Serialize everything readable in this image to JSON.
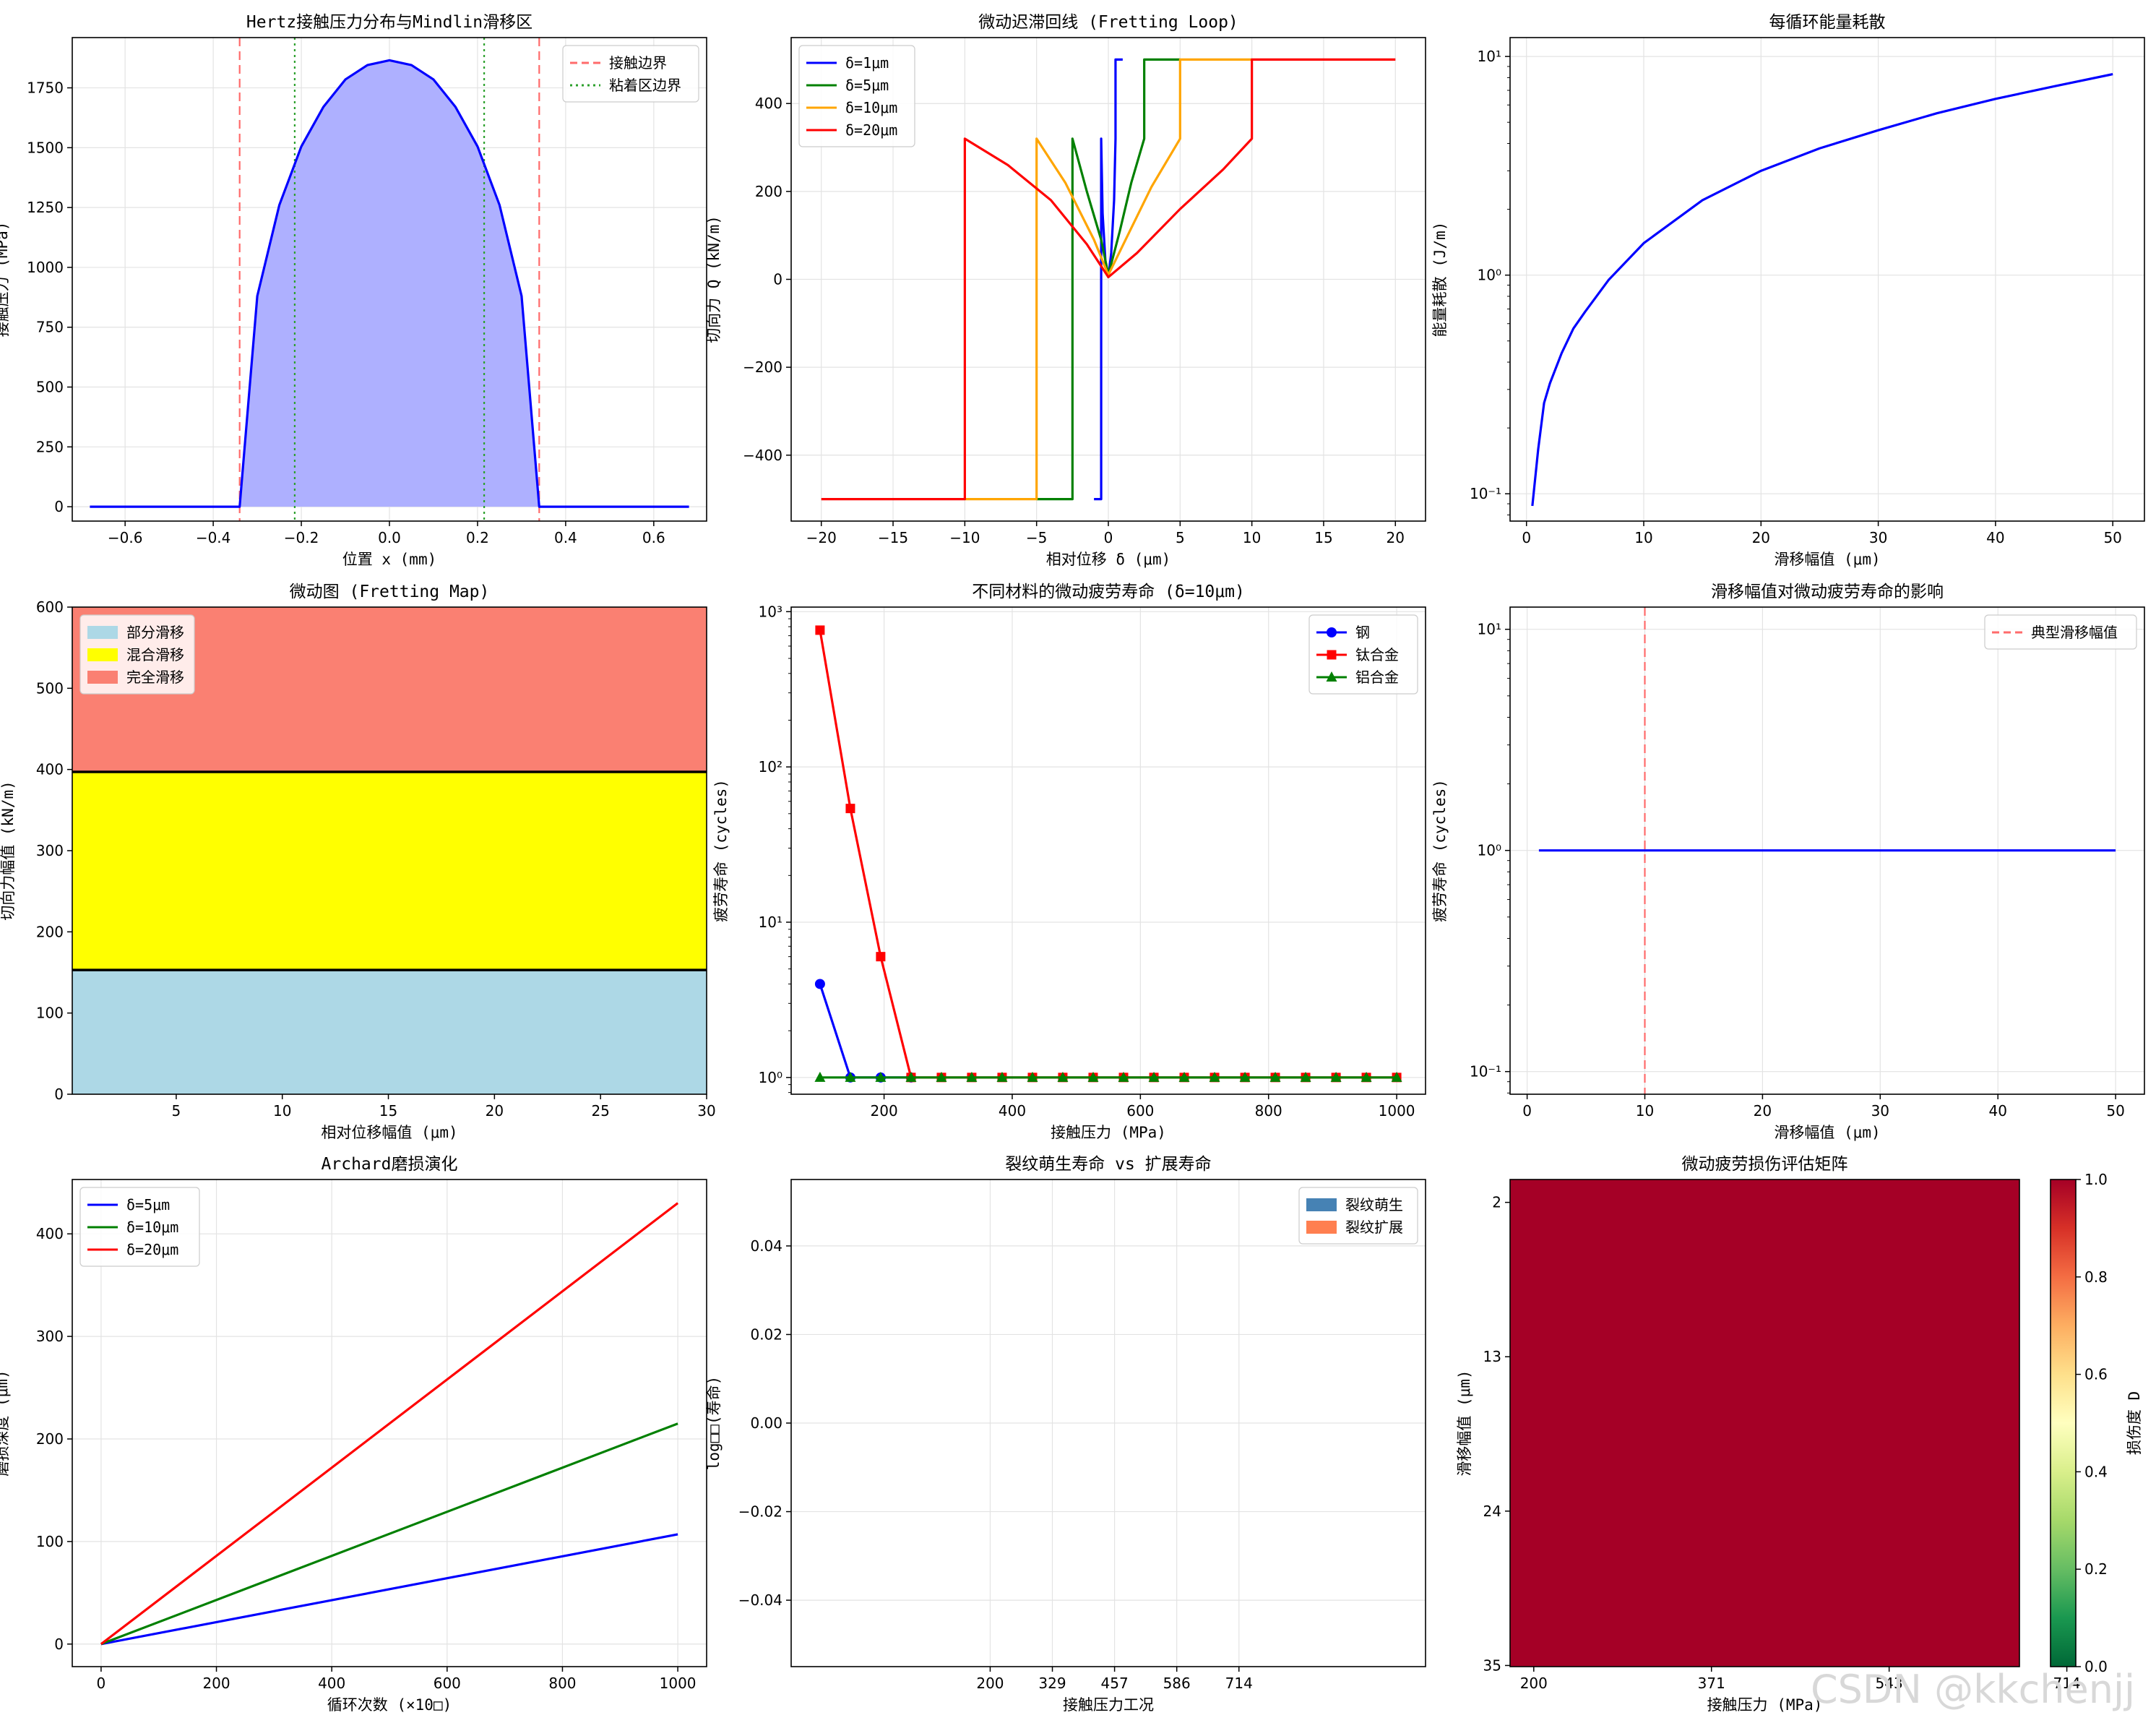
{
  "watermark": "CSDN @kkchenjj",
  "chart_data": [
    {
      "type": "area",
      "title": "Hertz接触压力分布与Mindlin滑移区",
      "xlabel": "位置 x (mm)",
      "ylabel": "接触压力 (MPa)",
      "xlim": [
        -0.72,
        0.72
      ],
      "ylim": [
        -60,
        1960
      ],
      "xticks": [
        -0.6,
        -0.4,
        -0.2,
        0.0,
        0.2,
        0.4,
        0.6
      ],
      "xticklabels": [
        "−0.6",
        "−0.4",
        "−0.2",
        "0.0",
        "0.2",
        "0.4",
        "0.6"
      ],
      "yticks": [
        0,
        250,
        500,
        750,
        1000,
        1250,
        1500,
        1750
      ],
      "yticklabels": [
        "0",
        "250",
        "500",
        "750",
        "1000",
        "1250",
        "1500",
        "1750"
      ],
      "series": [
        {
          "name": "",
          "color": "#0000ff",
          "fill": "#aeb0ff",
          "x": [
            -0.68,
            -0.36,
            -0.34,
            -0.3,
            -0.25,
            -0.2,
            -0.15,
            -0.1,
            -0.05,
            0.0,
            0.05,
            0.1,
            0.15,
            0.2,
            0.25,
            0.3,
            0.34,
            0.36,
            0.68
          ],
          "y": [
            0,
            0,
            0,
            880,
            1260,
            1505,
            1670,
            1785,
            1845,
            1865,
            1845,
            1785,
            1670,
            1505,
            1260,
            880,
            0,
            0,
            0
          ]
        }
      ],
      "vlines": [
        {
          "x": -0.34,
          "color": "#ff6b6b",
          "dash": "12,7",
          "legend": "接触边界"
        },
        {
          "x": 0.34,
          "color": "#ff6b6b",
          "dash": "12,7",
          "legend": ""
        },
        {
          "x": -0.215,
          "color": "#2ca02c",
          "dash": "3,5",
          "legend": "粘着区边界"
        },
        {
          "x": 0.215,
          "color": "#2ca02c",
          "dash": "3,5",
          "legend": ""
        }
      ],
      "legend": {
        "loc": "top-right",
        "entries": [
          {
            "label": "接触边界",
            "color": "#ff6b6b",
            "kind": "dash"
          },
          {
            "label": "粘着区边界",
            "color": "#2ca02c",
            "kind": "dot"
          }
        ]
      }
    },
    {
      "type": "line",
      "title": "微动迟滞回线 (Fretting Loop)",
      "xlabel": "相对位移 δ (μm)",
      "ylabel": "切向力 Q (kN/m)",
      "xlim": [
        -22.1,
        22.1
      ],
      "ylim": [
        -550,
        550
      ],
      "xticks": [
        -20,
        -15,
        -10,
        -5,
        0,
        5,
        10,
        15,
        20
      ],
      "xticklabels": [
        "−20",
        "−15",
        "−10",
        "−5",
        "0",
        "5",
        "10",
        "15",
        "20"
      ],
      "yticks": [
        -400,
        -200,
        0,
        200,
        400
      ],
      "yticklabels": [
        "−400",
        "−200",
        "0",
        "200",
        "400"
      ],
      "series": [
        {
          "name": "δ=1μm",
          "color": "#0000ff",
          "x": [
            -1,
            -0.5,
            -0.5,
            -0.4,
            -0.2,
            0,
            0.2,
            0.4,
            0.5,
            0.5,
            1
          ],
          "y": [
            -500,
            -500,
            320,
            150,
            40,
            5,
            60,
            180,
            320,
            500,
            500
          ]
        },
        {
          "name": "δ=5μm",
          "color": "#008000",
          "x": [
            -5,
            -2.5,
            -2.5,
            -1.5,
            -0.5,
            0,
            0.8,
            1.6,
            2.5,
            2.5,
            5
          ],
          "y": [
            -500,
            -500,
            320,
            200,
            90,
            10,
            110,
            220,
            320,
            500,
            500
          ]
        },
        {
          "name": "δ=10μm",
          "color": "#ffa500",
          "x": [
            -10,
            -5,
            -5,
            -3,
            -1,
            0,
            1.5,
            3,
            5,
            5,
            10
          ],
          "y": [
            -500,
            -500,
            320,
            220,
            90,
            10,
            110,
            210,
            320,
            500,
            500
          ]
        },
        {
          "name": "δ=20μm",
          "color": "#ff0000",
          "x": [
            -20,
            -10,
            -10,
            -7,
            -4,
            -1.5,
            0,
            2,
            5,
            8,
            10,
            10,
            20
          ],
          "y": [
            -500,
            -500,
            320,
            260,
            180,
            80,
            5,
            60,
            160,
            250,
            320,
            500,
            500
          ]
        }
      ],
      "legend": {
        "loc": "top-left"
      }
    },
    {
      "type": "line",
      "title": "每循环能量耗散",
      "xlabel": "滑移幅值 (μm)",
      "ylabel": "能量耗散 (J/m)",
      "xscale": "linear",
      "yscale": "log",
      "xlim": [
        -1.4,
        52.7
      ],
      "ylim": [
        0.075,
        12.2
      ],
      "xticks": [
        0,
        10,
        20,
        30,
        40,
        50
      ],
      "xticklabels": [
        "0",
        "10",
        "20",
        "30",
        "40",
        "50"
      ],
      "yticks": [
        0.1,
        1,
        10
      ],
      "yticklabels": [
        "10⁻¹",
        "10⁰",
        "10¹"
      ],
      "series": [
        {
          "name": "",
          "color": "#0000ff",
          "x": [
            0.5,
            1,
            1.5,
            2,
            3,
            4,
            5,
            7,
            10,
            15,
            20,
            25,
            30,
            35,
            40,
            45,
            50
          ],
          "y": [
            0.088,
            0.16,
            0.26,
            0.32,
            0.44,
            0.57,
            0.68,
            0.95,
            1.4,
            2.2,
            3.0,
            3.8,
            4.6,
            5.5,
            6.4,
            7.3,
            8.3
          ]
        }
      ]
    },
    {
      "type": "area",
      "title": "微动图 (Fretting Map)",
      "xlabel": "相对位移幅值 (μm)",
      "ylabel": "切向力幅值 (kN/m)",
      "xlim": [
        0.1,
        30
      ],
      "ylim": [
        0,
        600
      ],
      "xticks": [
        5,
        10,
        15,
        20,
        25,
        30
      ],
      "xticklabels": [
        "5",
        "10",
        "15",
        "20",
        "25",
        "30"
      ],
      "yticks": [
        0,
        100,
        200,
        300,
        400,
        500,
        600
      ],
      "yticklabels": [
        "0",
        "100",
        "200",
        "300",
        "400",
        "500",
        "600"
      ],
      "regions": [
        {
          "name": "部分滑移",
          "color": "#add8e6",
          "y0": 0,
          "y1": 153
        },
        {
          "name": "混合滑移",
          "color": "#ffff00",
          "y0": 153,
          "y1": 397
        },
        {
          "name": "完全滑移",
          "color": "#fa8072",
          "y0": 397,
          "y1": 600
        }
      ],
      "boundaries": [
        153,
        397
      ],
      "legend": {
        "loc": "top-left"
      }
    },
    {
      "type": "line",
      "title": "不同材料的微动疲劳寿命 (δ=10μm)",
      "xlabel": "接触压力 (MPa)",
      "ylabel": "疲劳寿命 (cycles)",
      "yscale": "log",
      "xlim": [
        55,
        1045
      ],
      "ylim": [
        0.78,
        1070
      ],
      "xticks": [
        200,
        400,
        600,
        800,
        1000
      ],
      "xticklabels": [
        "200",
        "400",
        "600",
        "800",
        "1000"
      ],
      "yticks": [
        1,
        10,
        100,
        1000
      ],
      "yticklabels": [
        "10⁰",
        "10¹",
        "10²",
        "10³"
      ],
      "series": [
        {
          "name": "钢",
          "color": "#0000ff",
          "marker": "circle",
          "x": [
            100,
            147.4,
            194.7,
            242.1
          ],
          "y": [
            4.0,
            1.0,
            1.0,
            1.0
          ]
        },
        {
          "name": "钛合金",
          "color": "#ff0000",
          "marker": "square",
          "x": [
            100,
            147.4,
            194.7,
            242.1,
            289.5,
            336.8,
            384.2,
            431.6,
            478.9,
            526.3,
            573.7,
            621.1,
            668.4,
            715.8,
            763.2,
            810.5,
            857.9,
            905.3,
            952.6,
            1000
          ],
          "y": [
            760,
            54,
            6.0,
            1,
            1,
            1,
            1,
            1,
            1,
            1,
            1,
            1,
            1,
            1,
            1,
            1,
            1,
            1,
            1,
            1
          ]
        },
        {
          "name": "铝合金",
          "color": "#008000",
          "marker": "triangle",
          "x": [
            100,
            147.4,
            194.7,
            242.1,
            289.5,
            336.8,
            384.2,
            431.6,
            478.9,
            526.3,
            573.7,
            621.1,
            668.4,
            715.8,
            763.2,
            810.5,
            857.9,
            905.3,
            952.6,
            1000
          ],
          "y": [
            1,
            1,
            1,
            1,
            1,
            1,
            1,
            1,
            1,
            1,
            1,
            1,
            1,
            1,
            1,
            1,
            1,
            1,
            1,
            1
          ]
        }
      ],
      "legend": {
        "loc": "top-right"
      }
    },
    {
      "type": "line",
      "title": "滑移幅值对微动疲劳寿命的影响",
      "xlabel": "滑移幅值 (μm)",
      "ylabel": "疲劳寿命 (cycles)",
      "yscale": "log",
      "xlim": [
        -1.45,
        52.45
      ],
      "ylim": [
        0.079,
        12.6
      ],
      "xticks": [
        0,
        10,
        20,
        30,
        40,
        50
      ],
      "xticklabels": [
        "0",
        "10",
        "20",
        "30",
        "40",
        "50"
      ],
      "yticks": [
        0.1,
        1,
        10
      ],
      "yticklabels": [
        "10⁻¹",
        "10⁰",
        "10¹"
      ],
      "series": [
        {
          "name": "",
          "color": "#0000ff",
          "x": [
            1,
            50
          ],
          "y": [
            1,
            1
          ]
        }
      ],
      "vlines": [
        {
          "x": 10,
          "color": "#ff6b6b",
          "dash": "12,7",
          "legend": "典型滑移幅值"
        }
      ],
      "legend": {
        "loc": "top-right",
        "entries": [
          {
            "label": "典型滑移幅值",
            "color": "#ff6b6b",
            "kind": "dash"
          }
        ]
      }
    },
    {
      "type": "line",
      "title": "Archard磨损演化",
      "xlabel": "循环次数 (×10□)",
      "ylabel": "磨损深度 (μm)",
      "xlim": [
        -50,
        1050
      ],
      "ylim": [
        -22,
        453
      ],
      "xticks": [
        0,
        200,
        400,
        600,
        800,
        1000
      ],
      "xticklabels": [
        "0",
        "200",
        "400",
        "600",
        "800",
        "1000"
      ],
      "yticks": [
        0,
        100,
        200,
        300,
        400
      ],
      "yticklabels": [
        "0",
        "100",
        "200",
        "300",
        "400"
      ],
      "series": [
        {
          "name": "δ=5μm",
          "color": "#0000ff",
          "x": [
            0,
            1000
          ],
          "y": [
            0,
            107
          ]
        },
        {
          "name": "δ=10μm",
          "color": "#008000",
          "x": [
            0,
            1000
          ],
          "y": [
            0,
            215
          ]
        },
        {
          "name": "δ=20μm",
          "color": "#ff0000",
          "x": [
            0,
            1000
          ],
          "y": [
            0,
            430
          ]
        }
      ],
      "legend": {
        "loc": "top-left"
      }
    },
    {
      "type": "bar",
      "title": "裂纹萌生寿命 vs 扩展寿命",
      "xlabel": "接触压力工况",
      "ylabel": "log□□(寿命)",
      "categories": [
        "200",
        "329",
        "457",
        "586",
        "714"
      ],
      "xlim": [
        -3.2,
        7.0
      ],
      "ylim": [
        -0.055,
        0.055
      ],
      "yticks": [
        -0.04,
        -0.02,
        0.0,
        0.02,
        0.04
      ],
      "yticklabels": [
        "−0.04",
        "−0.02",
        "0.00",
        "0.02",
        "0.04"
      ],
      "series": [
        {
          "name": "裂纹萌生",
          "color": "#4682b4",
          "values": [
            0,
            0,
            0,
            0,
            0
          ]
        },
        {
          "name": "裂纹扩展",
          "color": "#ff7f50",
          "values": [
            0,
            0,
            0,
            0,
            0
          ]
        }
      ],
      "legend": {
        "loc": "top-right"
      }
    },
    {
      "type": "heatmap",
      "title": "微动疲劳损伤评估矩阵",
      "xlabel": "接触压力 (MPa)",
      "ylabel": "滑移幅值 (μm)",
      "xticklabels": [
        "200",
        "371",
        "543",
        "714"
      ],
      "yticklabels": [
        "2",
        "13",
        "24",
        "35"
      ],
      "value": 1.0,
      "cell_color": "#a50026",
      "colorbar": {
        "label": "损伤度 D",
        "ticks": [
          0.0,
          0.2,
          0.4,
          0.6,
          0.8,
          1.0
        ],
        "ticklabels": [
          "0.0",
          "0.2",
          "0.4",
          "0.6",
          "0.8",
          "1.0"
        ],
        "stops": [
          "#006837",
          "#1a9850",
          "#66bd63",
          "#a6d96a",
          "#d9ef8b",
          "#ffffbf",
          "#fee08b",
          "#fdae61",
          "#f46d43",
          "#d73027",
          "#a50026"
        ]
      }
    }
  ]
}
